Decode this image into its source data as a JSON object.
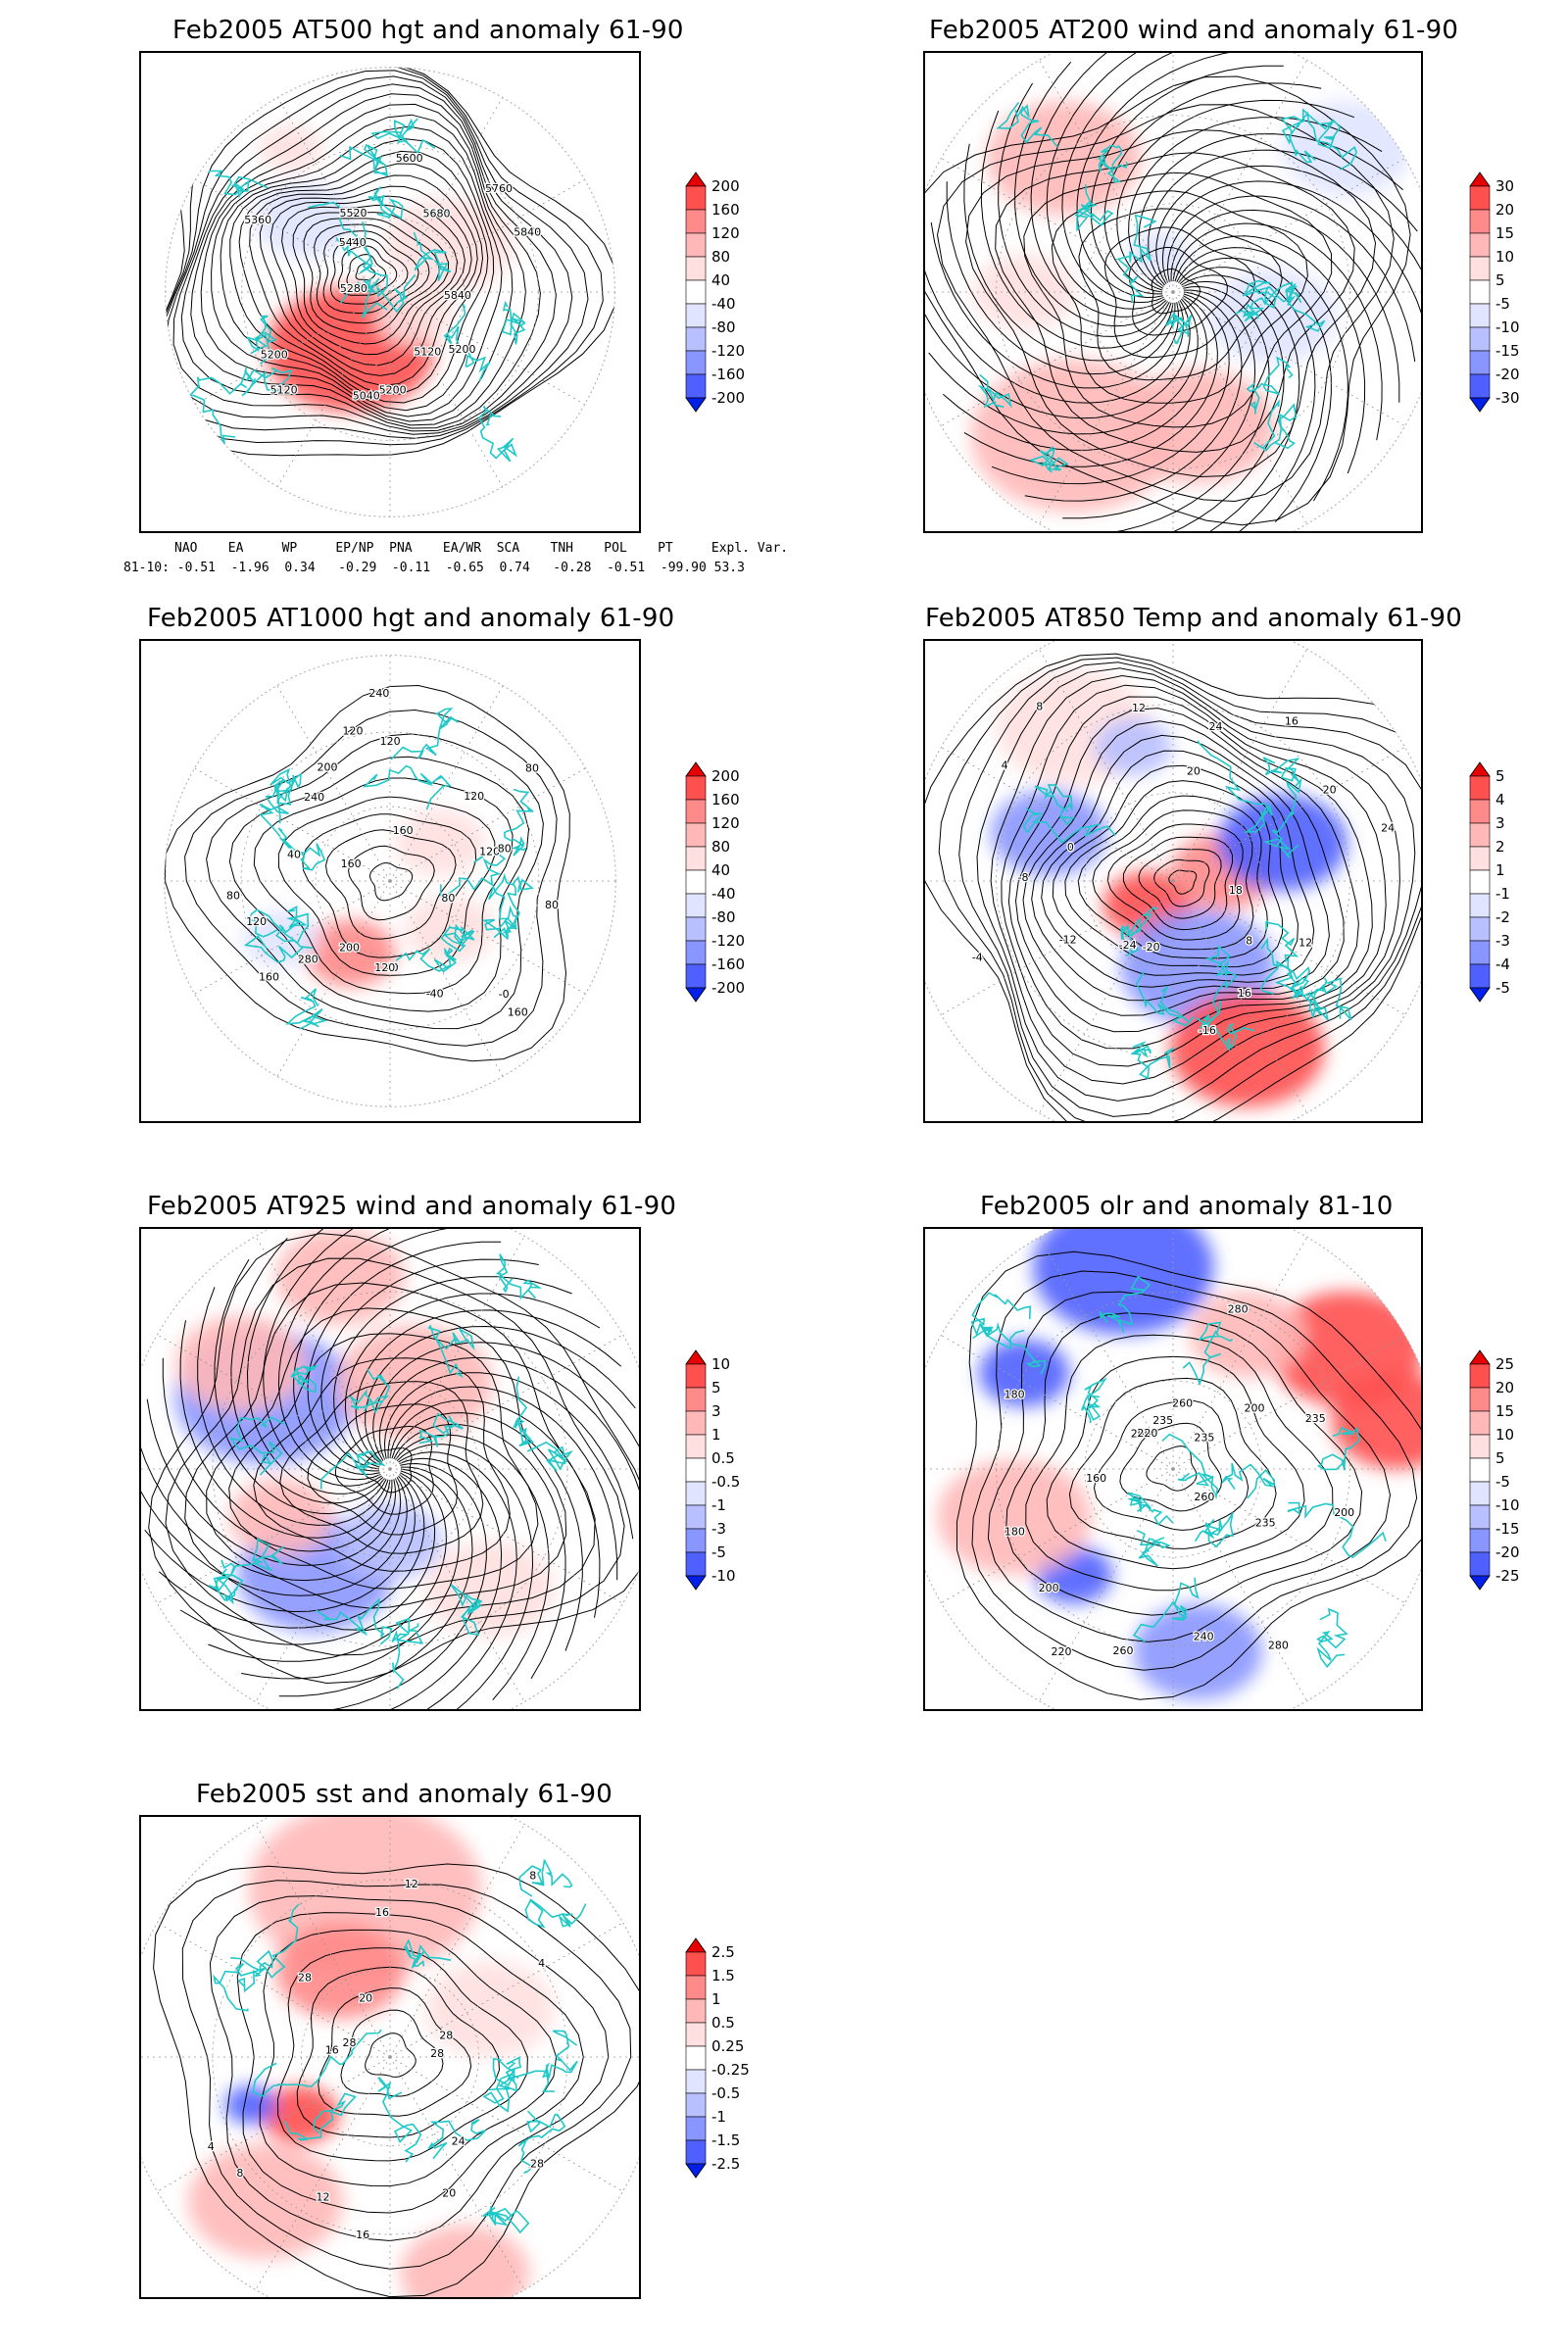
{
  "palette": {
    "reds": [
      "#ffe0e0",
      "#ffb8b8",
      "#ff8a8a",
      "#ff5050",
      "#e80000"
    ],
    "blues": [
      "#e0e4ff",
      "#b8c0ff",
      "#8a96ff",
      "#5060ff",
      "#0020e8"
    ],
    "coast": "#20c8c8",
    "contour": "#000000"
  },
  "panels": [
    {
      "id": "p500",
      "title": "Feb2005 AT500 hgt and anomaly 61-90",
      "colorbar": [
        "200",
        "160",
        "120",
        "80",
        "40",
        "-40",
        "-80",
        "-120",
        "-160",
        "-200"
      ],
      "contour_labels": [
        "5840",
        "5200",
        "5120",
        "5200",
        "5040",
        "5120",
        "5200",
        "5280",
        "5360",
        "5440",
        "5520",
        "5600",
        "5680",
        "5760",
        "5840"
      ],
      "index_table": {
        "headers": [
          "NAO",
          "EA",
          "WP",
          "EP/NP",
          "PNA",
          "EA/WR",
          "SCA",
          "TNH",
          "POL",
          "PT",
          "Expl. Var."
        ],
        "row_label": "81-10:",
        "values": [
          "-0.51",
          "-1.96",
          "0.34",
          "-0.29",
          "-0.11",
          "-0.65",
          "0.74",
          "-0.28",
          "-0.51",
          "-99.90",
          "53.3"
        ]
      }
    },
    {
      "id": "p200",
      "title": "Feb2005 AT200 wind and anomaly 61-90",
      "colorbar": [
        "30",
        "20",
        "15",
        "10",
        "5",
        "-5",
        "-10",
        "-15",
        "-20",
        "-30"
      ],
      "contour_labels": []
    },
    {
      "id": "p1000",
      "title": "Feb2005 AT1000 hgt and anomaly 61-90",
      "colorbar": [
        "200",
        "160",
        "120",
        "80",
        "40",
        "-40",
        "-80",
        "-120",
        "-160",
        "-200"
      ],
      "contour_labels": [
        "80",
        "80",
        "160",
        "-0",
        "-40",
        "40",
        "120",
        "200",
        "280",
        "160",
        "120",
        "80",
        "40",
        "160",
        "240",
        "200",
        "120",
        "240",
        "120",
        "160",
        "120",
        "80",
        "120",
        "80"
      ]
    },
    {
      "id": "p850",
      "title": "Feb2005 AT850 Temp and anomaly 61-90",
      "colorbar": [
        "5",
        "4",
        "3",
        "2",
        "1",
        "-1",
        "-2",
        "-3",
        "-4",
        "-5"
      ],
      "contour_labels": [
        "18",
        "12",
        "8",
        "16",
        "-16",
        "-20",
        "-24",
        "-12",
        "-4",
        "-8",
        "0",
        "4",
        "8",
        "12",
        "20",
        "24",
        "16",
        "20",
        "24"
      ]
    },
    {
      "id": "p925",
      "title": "Feb2005 AT925 wind and anomaly 61-90",
      "colorbar": [
        "10",
        "5",
        "3",
        "1",
        "0.5",
        "-0.5",
        "-1",
        "-3",
        "-5",
        "-10"
      ],
      "contour_labels": []
    },
    {
      "id": "polr",
      "title": "Feb2005 olr and anomaly 81-10",
      "colorbar": [
        "25",
        "20",
        "15",
        "10",
        "5",
        "-5",
        "-10",
        "-15",
        "-20",
        "-25"
      ],
      "contour_labels": [
        "200",
        "235",
        "260",
        "280",
        "240",
        "260",
        "220",
        "200",
        "180",
        "160",
        "180",
        "200",
        "220",
        "235",
        "260",
        "280",
        "235",
        "200",
        "235"
      ]
    },
    {
      "id": "psst",
      "title": "Feb2005 sst and anomaly 61-90",
      "colorbar": [
        "2.5",
        "1.5",
        "1",
        "0.5",
        "0.25",
        "-0.25",
        "-0.5",
        "-1",
        "-1.5",
        "-2.5"
      ],
      "contour_labels": [
        "28",
        "28",
        "24",
        "20",
        "16",
        "12",
        "8",
        "4",
        "16",
        "28",
        "28",
        "20",
        "16",
        "12",
        "8",
        "4",
        "28"
      ]
    }
  ]
}
